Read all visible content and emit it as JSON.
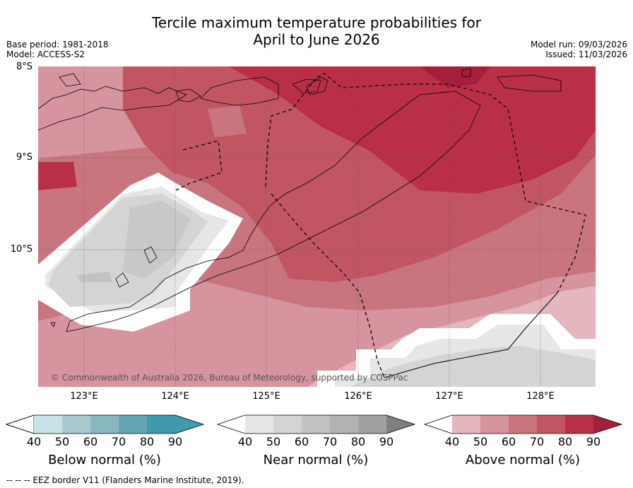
{
  "header": {
    "title_line1": "Tercile maximum temperature probabilities for",
    "title_line2": "April to June 2026",
    "base_period": "Base period: 1981-2018",
    "model": "Model: ACCESS-S2",
    "model_run": "Model run: 09/03/2026",
    "issued": "Issued: 11/03/2026"
  },
  "map": {
    "lat_labels": [
      "8°S",
      "9°S",
      "10°S"
    ],
    "lon_labels": [
      "123°E",
      "124°E",
      "125°E",
      "126°E",
      "127°E",
      "128°E"
    ],
    "copyright": "© Commonwealth of Australia 2026, Bureau of Meteorology, supported by COSPPac"
  },
  "colorbars": [
    {
      "title": "Below normal (%)",
      "ticks": [
        "40",
        "50",
        "60",
        "70",
        "80",
        "90"
      ],
      "colors": [
        "#ffffff",
        "#c8e2e8",
        "#a7c9ce",
        "#88b7c0",
        "#66a6b2",
        "#3f9aab"
      ]
    },
    {
      "title": "Near normal (%)",
      "ticks": [
        "40",
        "50",
        "60",
        "70",
        "80",
        "90"
      ],
      "colors": [
        "#ffffff",
        "#e6e6e6",
        "#d4d4d4",
        "#c2c2c2",
        "#b2b2b2",
        "#a0a0a0"
      ]
    },
    {
      "title": "Above normal (%)",
      "ticks": [
        "40",
        "50",
        "60",
        "70",
        "80",
        "90"
      ],
      "colors": [
        "#ffffff",
        "#e3b7bd",
        "#d5949e",
        "#c97580",
        "#c15662",
        "#b82f46"
      ]
    }
  ],
  "footer": "--  --  -- EEZ border V11 (Flanders Marine Institute, 2019)."
}
